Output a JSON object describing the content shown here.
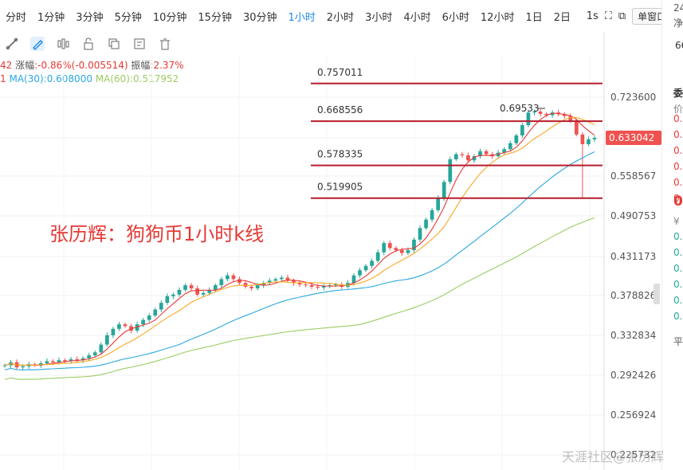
{
  "toolbar": {
    "timeframes": [
      "分时",
      "1分钟",
      "3分钟",
      "5分钟",
      "10分钟",
      "15分钟",
      "30分钟",
      "1小时",
      "2小时",
      "3小时",
      "4小时",
      "6小时",
      "12小时",
      "1日",
      "2日"
    ],
    "active": "1小时",
    "seconds_label": "1s",
    "window_mode": "单窗口"
  },
  "info": {
    "open_fragment": "42",
    "change_label": "涨幅",
    "change_value": ":-0.86%(-0.005514)",
    "amplitude_label": "振幅",
    "amplitude_value": ":2.37%",
    "ma_prefix": "1",
    "ma30": "MA(30):0.608000",
    "ma60": "MA(60):0.517952"
  },
  "annotation": "张历辉：狗狗币1小时k线",
  "watermark": "天涯社区@张历辉",
  "right_panel": {
    "top_value": "24",
    "label1": "净",
    "input_value": "66",
    "tab": "委",
    "price_header": "价",
    "big_price": "0.",
    "currency": "¥",
    "asks": [
      "0.6",
      "0.6",
      "0.6",
      "0.6",
      "0.6",
      "0.6"
    ],
    "bids": [
      "0.6",
      "0.6",
      "0.6",
      "0.6",
      "0.6",
      "0.6"
    ],
    "footer": "平"
  },
  "chart_data": {
    "type": "candlestick",
    "series_colors": {
      "up": "#26a69a",
      "down": "#ef5350",
      "ma5": "#e53935",
      "ma10": "#f9a825",
      "ma30": "#29a8e0",
      "ma60": "#9ccc65",
      "level": "#b71c2c"
    },
    "y_ticks": [
      "0.723600",
      "0.633042",
      "0.558567",
      "0.490753",
      "0.431173",
      "0.378826",
      "0.332834",
      "0.292426",
      "0.256924",
      "0.225732"
    ],
    "current_price": "0.633042",
    "ylim": [
      0.2257,
      0.757
    ],
    "horizontal_levels": [
      {
        "label": "0.757011",
        "value": 0.757011
      },
      {
        "label": "0.668556",
        "value": 0.668556
      },
      {
        "label": "0.578335",
        "value": 0.578335
      },
      {
        "label": "0.519905",
        "value": 0.519905
      }
    ],
    "peak_annotation": "0.69533",
    "closes": [
      0.302,
      0.305,
      0.3,
      0.301,
      0.303,
      0.302,
      0.304,
      0.306,
      0.305,
      0.307,
      0.306,
      0.308,
      0.307,
      0.309,
      0.312,
      0.315,
      0.323,
      0.333,
      0.34,
      0.345,
      0.343,
      0.338,
      0.345,
      0.35,
      0.355,
      0.362,
      0.37,
      0.378,
      0.38,
      0.386,
      0.392,
      0.388,
      0.38,
      0.382,
      0.386,
      0.392,
      0.4,
      0.405,
      0.4,
      0.395,
      0.39,
      0.388,
      0.392,
      0.395,
      0.398,
      0.4,
      0.402,
      0.398,
      0.395,
      0.393,
      0.392,
      0.39,
      0.389,
      0.391,
      0.392,
      0.393,
      0.39,
      0.395,
      0.405,
      0.412,
      0.418,
      0.425,
      0.437,
      0.45,
      0.443,
      0.44,
      0.436,
      0.44,
      0.455,
      0.472,
      0.485,
      0.5,
      0.52,
      0.548,
      0.59,
      0.6,
      0.598,
      0.588,
      0.596,
      0.606,
      0.6,
      0.596,
      0.603,
      0.61,
      0.622,
      0.638,
      0.66,
      0.688,
      0.69,
      0.685,
      0.682,
      0.688,
      0.684,
      0.68,
      0.67,
      0.64,
      0.62,
      0.63,
      0.633
    ]
  }
}
